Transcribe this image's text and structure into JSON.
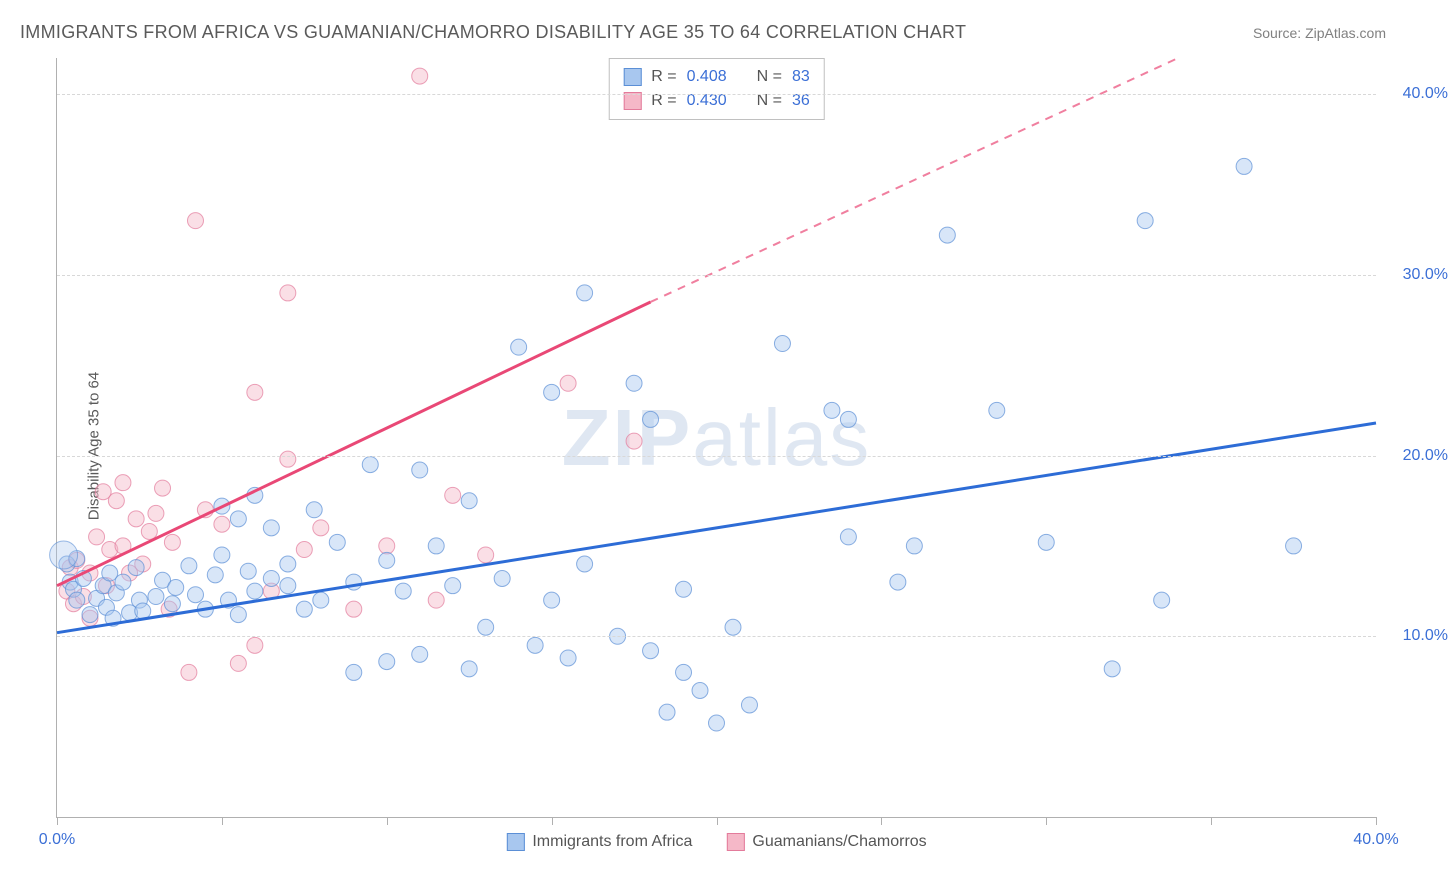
{
  "title": "IMMIGRANTS FROM AFRICA VS GUAMANIAN/CHAMORRO DISABILITY AGE 35 TO 64 CORRELATION CHART",
  "source_label": "Source: ",
  "source_name": "ZipAtlas.com",
  "watermark_a": "ZIP",
  "watermark_b": "atlas",
  "y_axis_title": "Disability Age 35 to 64",
  "chart": {
    "type": "scatter",
    "xlim": [
      0,
      40
    ],
    "ylim": [
      0,
      42
    ],
    "x_ticks": [
      0,
      5,
      10,
      15,
      20,
      25,
      30,
      35,
      40
    ],
    "x_tick_labels": {
      "0": "0.0%",
      "40": "40.0%"
    },
    "y_ticks": [
      10,
      20,
      30,
      40
    ],
    "y_tick_labels": [
      "10.0%",
      "20.0%",
      "30.0%",
      "40.0%"
    ],
    "grid_color": "#d8d8d8",
    "axis_color": "#b0b0b0",
    "tick_label_color": "#3b6fd6",
    "background_color": "#ffffff",
    "marker_radius": 8,
    "marker_opacity": 0.45,
    "series": [
      {
        "name": "Immigrants from Africa",
        "fill": "#a8c7ef",
        "stroke": "#5b8fd6",
        "line_color": "#2d6cd6",
        "line_width": 3,
        "R": "0.408",
        "N": "83",
        "trend": {
          "x1": 0,
          "y1": 10.2,
          "x2": 40,
          "y2": 21.8
        },
        "points": [
          [
            0.3,
            14.0
          ],
          [
            0.4,
            13.0
          ],
          [
            0.5,
            12.6
          ],
          [
            0.6,
            14.3
          ],
          [
            0.6,
            12.0
          ],
          [
            0.8,
            13.2
          ],
          [
            1.0,
            11.2
          ],
          [
            1.2,
            12.1
          ],
          [
            1.4,
            12.8
          ],
          [
            1.5,
            11.6
          ],
          [
            1.6,
            13.5
          ],
          [
            1.7,
            11.0
          ],
          [
            1.8,
            12.4
          ],
          [
            2.0,
            13.0
          ],
          [
            2.2,
            11.3
          ],
          [
            2.4,
            13.8
          ],
          [
            2.5,
            12.0
          ],
          [
            2.6,
            11.4
          ],
          [
            3.0,
            12.2
          ],
          [
            3.2,
            13.1
          ],
          [
            3.5,
            11.8
          ],
          [
            3.6,
            12.7
          ],
          [
            4.0,
            13.9
          ],
          [
            4.2,
            12.3
          ],
          [
            4.5,
            11.5
          ],
          [
            4.8,
            13.4
          ],
          [
            5.0,
            14.5
          ],
          [
            5.0,
            17.2
          ],
          [
            5.2,
            12.0
          ],
          [
            5.5,
            11.2
          ],
          [
            5.5,
            16.5
          ],
          [
            5.8,
            13.6
          ],
          [
            6.0,
            12.5
          ],
          [
            6.0,
            17.8
          ],
          [
            6.5,
            13.2
          ],
          [
            6.5,
            16.0
          ],
          [
            7.0,
            12.8
          ],
          [
            7.0,
            14.0
          ],
          [
            7.5,
            11.5
          ],
          [
            7.8,
            17.0
          ],
          [
            8.0,
            12.0
          ],
          [
            8.5,
            15.2
          ],
          [
            9.0,
            8.0
          ],
          [
            9.0,
            13.0
          ],
          [
            9.5,
            19.5
          ],
          [
            10.0,
            8.6
          ],
          [
            10.0,
            14.2
          ],
          [
            10.5,
            12.5
          ],
          [
            11.0,
            9.0
          ],
          [
            11.0,
            19.2
          ],
          [
            11.5,
            15.0
          ],
          [
            12.0,
            12.8
          ],
          [
            12.5,
            8.2
          ],
          [
            12.5,
            17.5
          ],
          [
            13.0,
            10.5
          ],
          [
            13.5,
            13.2
          ],
          [
            14.0,
            26.0
          ],
          [
            14.5,
            9.5
          ],
          [
            15.0,
            12.0
          ],
          [
            15.0,
            23.5
          ],
          [
            15.5,
            8.8
          ],
          [
            16.0,
            14.0
          ],
          [
            16.0,
            29.0
          ],
          [
            17.0,
            10.0
          ],
          [
            17.5,
            24.0
          ],
          [
            18.0,
            9.2
          ],
          [
            18.0,
            22.0
          ],
          [
            18.5,
            5.8
          ],
          [
            19.0,
            8.0
          ],
          [
            19.0,
            12.6
          ],
          [
            19.5,
            7.0
          ],
          [
            20.0,
            5.2
          ],
          [
            20.5,
            10.5
          ],
          [
            21.0,
            6.2
          ],
          [
            22.0,
            26.2
          ],
          [
            23.5,
            22.5
          ],
          [
            24.0,
            15.5
          ],
          [
            24.0,
            22.0
          ],
          [
            25.5,
            13.0
          ],
          [
            26.0,
            15.0
          ],
          [
            27.0,
            32.2
          ],
          [
            28.5,
            22.5
          ],
          [
            30.0,
            15.2
          ],
          [
            32.0,
            8.2
          ],
          [
            33.5,
            12.0
          ],
          [
            33.0,
            33.0
          ],
          [
            36.0,
            36.0
          ],
          [
            37.5,
            15.0
          ]
        ]
      },
      {
        "name": "Guamanians/Chamorros",
        "fill": "#f5b8c8",
        "stroke": "#e37b9b",
        "line_color": "#e94876",
        "line_width": 3,
        "R": "0.430",
        "N": "36",
        "trend": {
          "x1": 0,
          "y1": 12.8,
          "x2": 18,
          "y2": 28.5
        },
        "trend_extrap": {
          "x1": 18,
          "y1": 28.5,
          "x2": 34,
          "y2": 42.0
        },
        "points": [
          [
            0.3,
            12.5
          ],
          [
            0.4,
            13.8
          ],
          [
            0.5,
            11.8
          ],
          [
            0.6,
            14.2
          ],
          [
            0.8,
            12.2
          ],
          [
            1.0,
            13.5
          ],
          [
            1.0,
            11.0
          ],
          [
            1.2,
            15.5
          ],
          [
            1.4,
            18.0
          ],
          [
            1.5,
            12.8
          ],
          [
            1.6,
            14.8
          ],
          [
            1.8,
            17.5
          ],
          [
            2.0,
            15.0
          ],
          [
            2.0,
            18.5
          ],
          [
            2.2,
            13.5
          ],
          [
            2.4,
            16.5
          ],
          [
            2.6,
            14.0
          ],
          [
            2.8,
            15.8
          ],
          [
            3.0,
            16.8
          ],
          [
            3.2,
            18.2
          ],
          [
            3.4,
            11.5
          ],
          [
            3.5,
            15.2
          ],
          [
            4.0,
            8.0
          ],
          [
            4.2,
            33.0
          ],
          [
            4.5,
            17.0
          ],
          [
            5.0,
            16.2
          ],
          [
            5.5,
            8.5
          ],
          [
            6.0,
            9.5
          ],
          [
            6.0,
            23.5
          ],
          [
            6.5,
            12.5
          ],
          [
            7.0,
            19.8
          ],
          [
            7.5,
            14.8
          ],
          [
            8.0,
            16.0
          ],
          [
            9.0,
            11.5
          ],
          [
            10.0,
            15.0
          ],
          [
            11.0,
            41.0
          ],
          [
            11.5,
            12.0
          ],
          [
            12.0,
            17.8
          ],
          [
            13.0,
            14.5
          ],
          [
            15.5,
            24.0
          ],
          [
            17.5,
            20.8
          ],
          [
            7.0,
            29.0
          ]
        ]
      }
    ]
  },
  "stats_legend": {
    "r_label": "R =",
    "n_label": "N ="
  },
  "bottom_legend": {
    "a": "Immigrants from Africa",
    "b": "Guamanians/Chamorros"
  }
}
